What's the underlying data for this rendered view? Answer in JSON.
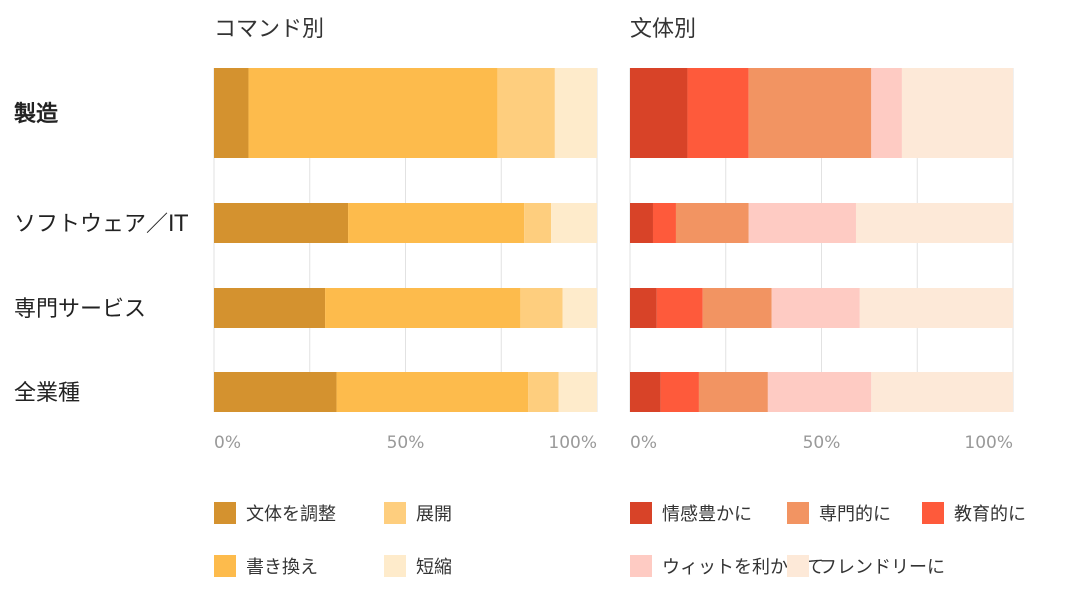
{
  "categories": [
    "製造",
    "ソフトウェア／IT",
    "専門サービス",
    "全業種"
  ],
  "highlight_category": "製造",
  "chart_data": [
    {
      "type": "bar",
      "orientation": "horizontal",
      "stacked": true,
      "normalized": true,
      "title": "コマンド別",
      "categories": [
        "製造",
        "ソフトウェア／IT",
        "専門サービス",
        "全業種"
      ],
      "xlim": [
        0,
        100
      ],
      "x_ticks": [
        "0%",
        "50%",
        "100%"
      ],
      "grid": true,
      "legend_position": "bottom",
      "series": [
        {
          "name": "文体を調整",
          "color": "#D4922F",
          "values": [
            9,
            35,
            29,
            32
          ]
        },
        {
          "name": "書き換え",
          "color": "#FDBB4C",
          "values": [
            65,
            46,
            51,
            50
          ]
        },
        {
          "name": "展開",
          "color": "#FECE7E",
          "values": [
            15,
            7,
            11,
            8
          ]
        },
        {
          "name": "短縮",
          "color": "#FEEBCB",
          "values": [
            11,
            12,
            9,
            10
          ]
        }
      ],
      "legend_order": [
        0,
        2,
        1,
        3
      ]
    },
    {
      "type": "bar",
      "orientation": "horizontal",
      "stacked": true,
      "normalized": true,
      "title": "文体別",
      "categories": [
        "製造",
        "ソフトウェア／IT",
        "専門サービス",
        "全業種"
      ],
      "xlim": [
        0,
        100
      ],
      "x_ticks": [
        "0%",
        "50%",
        "100%"
      ],
      "grid": true,
      "legend_position": "bottom",
      "series": [
        {
          "name": "情感豊かに",
          "color": "#D84328",
          "values": [
            15,
            6,
            7,
            8
          ]
        },
        {
          "name": "教育的に",
          "color": "#FE5A3B",
          "values": [
            16,
            6,
            12,
            10
          ]
        },
        {
          "name": "専門的に",
          "color": "#F29462",
          "values": [
            32,
            19,
            18,
            18
          ]
        },
        {
          "name": "ウィットを利かせて",
          "color": "#FECBC3",
          "values": [
            8,
            28,
            23,
            27
          ]
        },
        {
          "name": "フレンドリーに",
          "color": "#FDE9D8",
          "values": [
            29,
            41,
            40,
            37
          ]
        }
      ],
      "legend_order": [
        0,
        2,
        1,
        3,
        4
      ]
    }
  ]
}
